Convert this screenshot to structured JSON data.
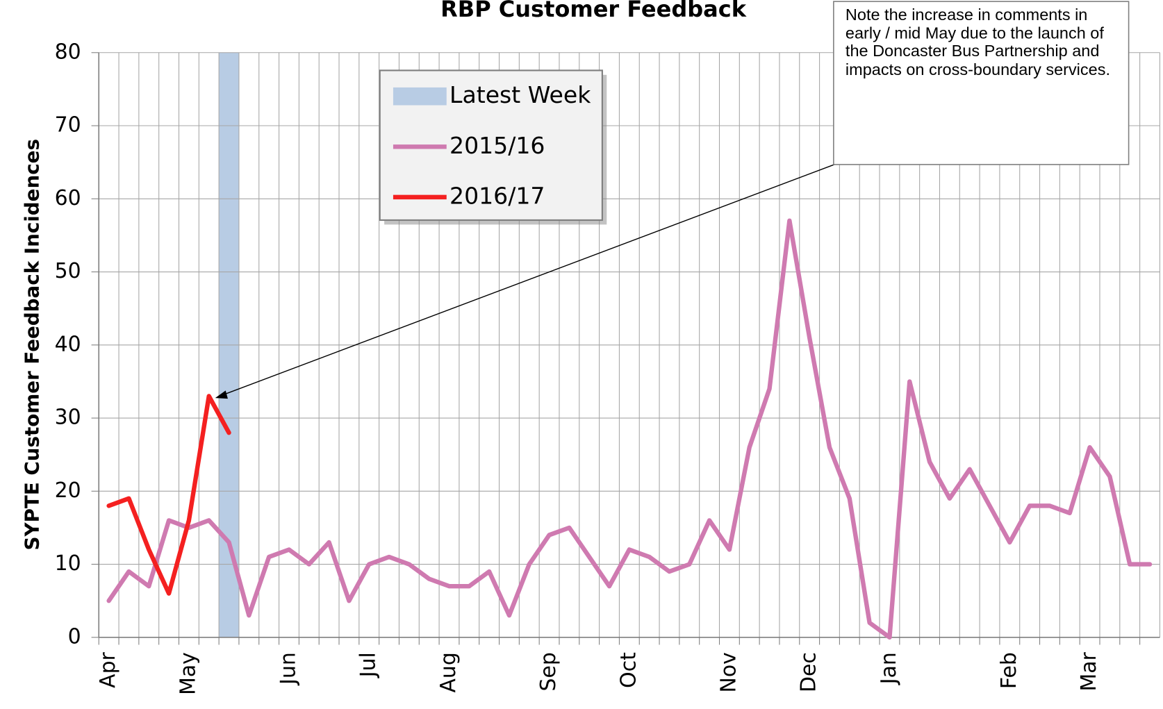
{
  "chart_data": {
    "type": "line",
    "title": "RBP Customer Feedback",
    "y_label": "SYPTE Customer Feedback Incidences",
    "annotation": "Note the increase in comments in early / mid May due to the launch of the Doncaster Bus Partnership and impacts on cross-boundary services.",
    "categories": [
      "Apr",
      null,
      null,
      null,
      "May",
      null,
      null,
      null,
      null,
      "Jun",
      null,
      null,
      null,
      "Jul",
      null,
      null,
      null,
      "Aug",
      null,
      null,
      null,
      null,
      "Sep",
      null,
      null,
      null,
      "Oct",
      null,
      null,
      null,
      null,
      "Nov",
      null,
      null,
      null,
      "Dec",
      null,
      null,
      null,
      "Jan",
      null,
      null,
      null,
      null,
      null,
      "Feb",
      null,
      null,
      null,
      "Mar",
      null,
      null,
      null
    ],
    "series": [
      {
        "name": "Latest Week",
        "type": "bar",
        "color": "#b8cce4",
        "values": [
          null,
          null,
          null,
          null,
          null,
          null,
          80,
          null,
          null,
          null,
          null,
          null,
          null,
          null,
          null,
          null,
          null,
          null,
          null,
          null,
          null,
          null,
          null,
          null,
          null,
          null,
          null,
          null,
          null,
          null,
          null,
          null,
          null,
          null,
          null,
          null,
          null,
          null,
          null,
          null,
          null,
          null,
          null,
          null,
          null,
          null,
          null,
          null,
          null,
          null,
          null,
          null,
          null
        ]
      },
      {
        "name": "2015/16",
        "type": "line",
        "color": "#cf7ab0",
        "values": [
          5,
          9,
          7,
          16,
          15,
          16,
          13,
          3,
          11,
          12,
          10,
          13,
          5,
          10,
          11,
          10,
          8,
          7,
          7,
          9,
          3,
          10,
          14,
          15,
          11,
          7,
          12,
          11,
          9,
          10,
          16,
          12,
          26,
          34,
          57,
          41,
          26,
          19,
          2,
          0,
          35,
          24,
          19,
          23,
          18,
          13,
          18,
          18,
          17,
          26,
          22,
          10,
          10
        ]
      },
      {
        "name": "2016/17",
        "type": "line",
        "color": "#f42020",
        "values": [
          18,
          19,
          12,
          6,
          16,
          33,
          28,
          null,
          null,
          null,
          null,
          null,
          null,
          null,
          null,
          null,
          null,
          null,
          null,
          null,
          null,
          null,
          null,
          null,
          null,
          null,
          null,
          null,
          null,
          null,
          null,
          null,
          null,
          null,
          null,
          null,
          null,
          null,
          null,
          null,
          null,
          null,
          null,
          null,
          null,
          null,
          null,
          null,
          null,
          null,
          null,
          null,
          null
        ]
      }
    ],
    "ylim": [
      0,
      80
    ],
    "yticks": [
      0,
      10,
      20,
      30,
      40,
      50,
      60,
      70,
      80
    ],
    "grid": true
  }
}
